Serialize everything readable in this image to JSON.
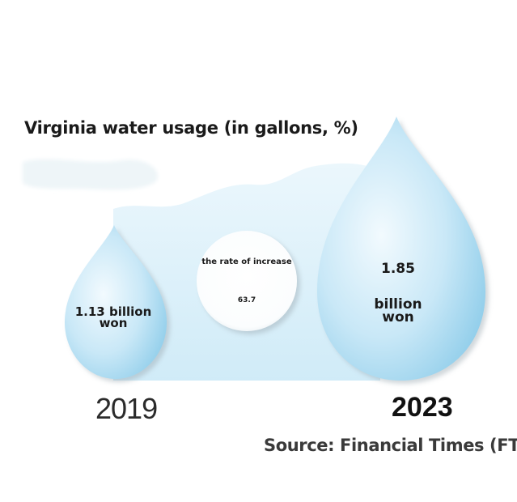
{
  "chart_data": {
    "type": "bar",
    "title": "Virginia water usage (in gallons, %)",
    "categories": [
      "2019",
      "2023"
    ],
    "values": [
      1.13,
      1.85
    ],
    "value_labels": [
      "1.13 billion won",
      "1.85 billion won"
    ],
    "value_number_2023": "1.85",
    "value_unit_2023": "billion won",
    "value_text_2019": "1.13 billion won",
    "increase_label": "the rate of increase",
    "increase_value": "63.7",
    "source": "Source: Financial Times (FT)"
  },
  "colors": {
    "drop_light": "#eaf6fc",
    "drop_mid": "#bfe3f5",
    "drop_dark": "#8ccbe9",
    "wave": "#d7eef9",
    "circle": "#ffffff"
  }
}
